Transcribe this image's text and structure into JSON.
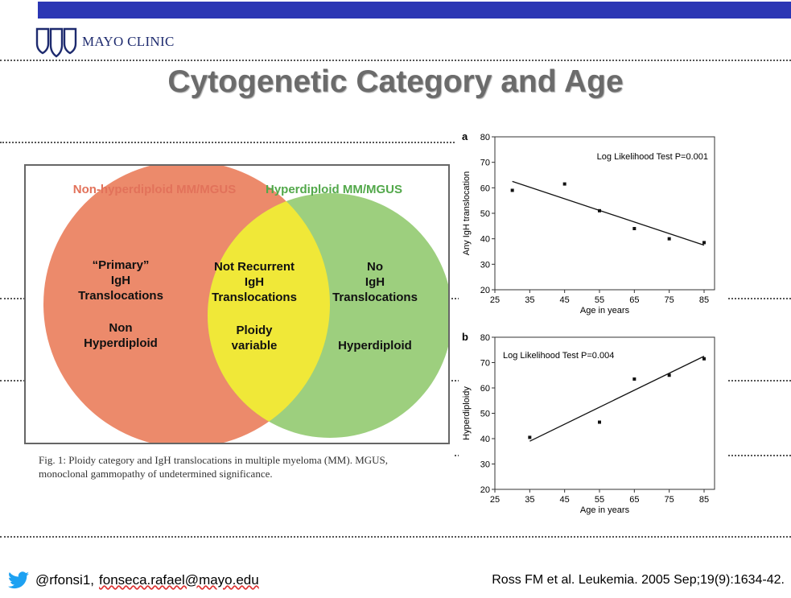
{
  "logo": {
    "text": "MAYO CLINIC"
  },
  "title": "Cytogenetic Category and Age",
  "venn": {
    "left_title": "Non-hyperdiploid MM/MGUS",
    "right_title": "Hyperdiploid MM/MGUS",
    "left_lines": [
      "“Primary”",
      "IgH",
      "Translocations",
      "Non",
      "Hyperdiploid"
    ],
    "middle_lines": [
      "Not Recurrent",
      "IgH",
      "Translocations",
      "Ploidy",
      "variable"
    ],
    "right_lines": [
      "No",
      "IgH",
      "Translocations",
      "Hyperdiploid"
    ],
    "colors": {
      "left": "#ec8a6b",
      "middle": "#f0e838",
      "right": "#9dcf7e",
      "left_title": "#e2725a",
      "right_title": "#52a84a"
    }
  },
  "caption": {
    "line1": "Fig. 1: Ploidy category and IgH translocations in multiple myeloma (MM). MGUS,",
    "line2": "monoclonal gammopathy of undetermined significance."
  },
  "chart_data": [
    {
      "type": "scatter",
      "panel": "a",
      "annotation": "Log Likelihood Test P=0.001",
      "xlabel": "Age in years",
      "ylabel": "Any IgH translocation",
      "xlim": [
        25,
        88
      ],
      "ylim": [
        20,
        80
      ],
      "xticks": [
        25,
        35,
        45,
        55,
        65,
        75,
        85
      ],
      "yticks": [
        20,
        30,
        40,
        50,
        60,
        70,
        80
      ],
      "x": [
        30,
        45,
        55,
        65,
        75,
        85
      ],
      "y": [
        59,
        61.5,
        51,
        44,
        40,
        38.5
      ],
      "trend": [
        [
          30,
          62.5
        ],
        [
          85,
          37.5
        ]
      ]
    },
    {
      "type": "scatter",
      "panel": "b",
      "annotation": "Log Likelihood Test P=0.004",
      "xlabel": "Age in years",
      "ylabel": "Hyperdiploidy",
      "xlim": [
        25,
        88
      ],
      "ylim": [
        20,
        80
      ],
      "xticks": [
        25,
        35,
        45,
        55,
        65,
        75,
        85
      ],
      "yticks": [
        20,
        30,
        40,
        50,
        60,
        70,
        80
      ],
      "x": [
        35,
        55,
        65,
        75,
        85
      ],
      "y": [
        40.5,
        46.5,
        63.5,
        65,
        71.5
      ],
      "trend": [
        [
          35,
          39
        ],
        [
          85,
          72.5
        ]
      ]
    }
  ],
  "footer": {
    "handle": "@rfonsi1,",
    "email": "fonseca.rafael@mayo.edu",
    "citation": "Ross FM et al.  Leukemia. 2005 Sep;19(9):1634-42."
  }
}
